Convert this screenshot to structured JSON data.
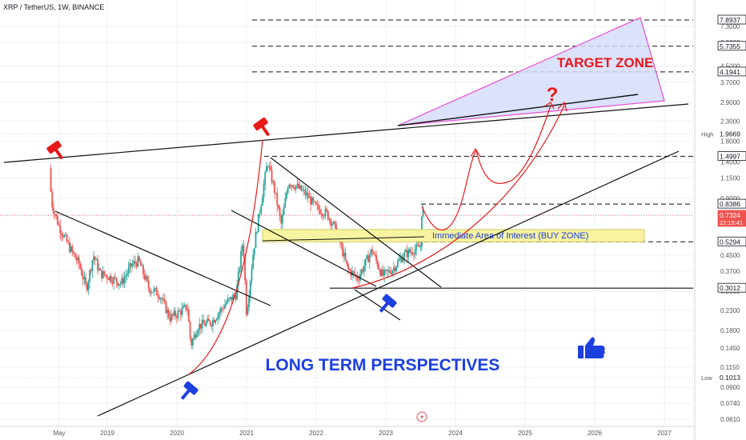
{
  "header": {
    "title": "XRP / TetherUS, 1W, BINANCE"
  },
  "colors": {
    "background": "#ffffff",
    "grid": "#eef0f4",
    "candle_up": "#26a69a",
    "candle_down": "#ef5350",
    "trendline": "#111111",
    "target_zone_fill": "#d6dcfb",
    "target_zone_stroke": "#e64fd0",
    "buy_zone_fill": "#f7f3a0",
    "projection": "#e8191a",
    "annotation_blue": "#1c3fe0",
    "annotation_red": "#e8191a"
  },
  "chart_data": {
    "type": "candlestick",
    "symbol": "XRP / TetherUS",
    "interval": "1W",
    "exchange": "BINANCE",
    "scale": "log",
    "x_tick_labels": [
      "May",
      "2019",
      "2020",
      "2021",
      "2022",
      "2023",
      "2024",
      "2025",
      "2026",
      "2027"
    ],
    "y_tick_labels": [
      "7.3000",
      "6.0000",
      "4.5000",
      "3.7000",
      "2.9000",
      "2.3000",
      "1.8000",
      "1.4000",
      "1.1500",
      "0.9000",
      "0.7300",
      "0.4500",
      "0.3700",
      "0.2900",
      "0.2300",
      "0.1800",
      "0.1450",
      "0.1150",
      "0.0900",
      "0.0740",
      "0.0610"
    ],
    "ylim": [
      0.055,
      9.5
    ],
    "price_levels": [
      {
        "label": "7.8937",
        "value": 7.8937,
        "style": "dashed"
      },
      {
        "label": "5.7355",
        "value": 5.7355,
        "style": "dashed"
      },
      {
        "label": "4.1941",
        "value": 4.1941,
        "style": "dashed"
      },
      {
        "label": "1.9669",
        "value": 1.9669,
        "style": "high",
        "prefix": "High"
      },
      {
        "label": "1.4997",
        "value": 1.4997,
        "style": "dashed"
      },
      {
        "label": "0.8386",
        "value": 0.8386,
        "style": "dashed"
      },
      {
        "label": "0.7324",
        "value": 0.7324,
        "style": "current",
        "sublabel": "22:15:41"
      },
      {
        "label": "0.5294",
        "value": 0.5294,
        "style": "dashed"
      },
      {
        "label": "0.3012",
        "value": 0.3012,
        "style": "solid"
      },
      {
        "label": "0.1013",
        "value": 0.1013,
        "style": "low",
        "prefix": "Low"
      }
    ],
    "annotations": {
      "target_zone": "TARGET ZONE",
      "buy_zone": "Immediate Area of Interest (BUY ZONE)",
      "question_mark": "?",
      "perspective": "LONG TERM PERSPECTIVES"
    }
  }
}
